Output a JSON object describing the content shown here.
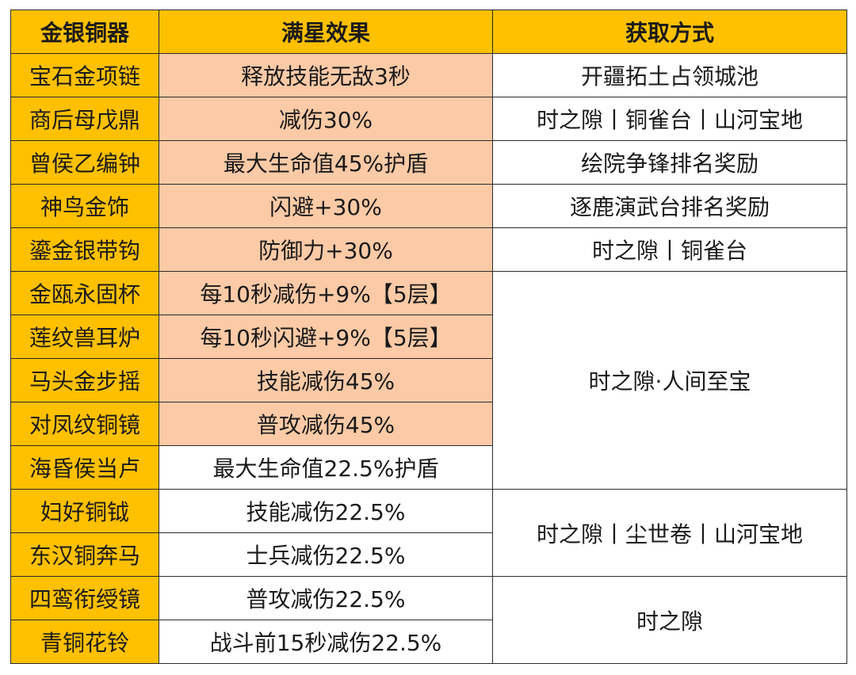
{
  "header": {
    "col_name": "金银铜器",
    "col_effect": "满星效果",
    "col_source": "获取方式"
  },
  "rows": [
    {
      "name": "宝石金项链",
      "effect": "释放技能无敌3秒",
      "source": "开疆拓土占领城池"
    },
    {
      "name": "商后母戊鼎",
      "effect": "减伤30%",
      "source": "时之隙丨铜雀台丨山河宝地"
    },
    {
      "name": "曾侯乙编钟",
      "effect": "最大生命值45%护盾",
      "source": "绘院争锋排名奖励"
    },
    {
      "name": "神鸟金饰",
      "effect": "闪避+30%",
      "source": "逐鹿演武台排名奖励"
    },
    {
      "name": "鎏金银带钩",
      "effect": "防御力+30%",
      "source": "时之隙丨铜雀台"
    },
    {
      "name": "金瓯永固杯",
      "effect": "每10秒减伤+9%【5层】",
      "source": "时之隙·人间至宝"
    },
    {
      "name": "莲纹兽耳炉",
      "effect": "每10秒闪避+9%【5层】"
    },
    {
      "name": "马头金步摇",
      "effect": "技能减伤45%"
    },
    {
      "name": "对凤纹铜镜",
      "effect": "普攻减伤45%"
    },
    {
      "name": "海昏侯当卢",
      "effect": "最大生命值22.5%护盾"
    },
    {
      "name": "妇好铜钺",
      "effect": "技能减伤22.5%",
      "source": "时之隙丨尘世卷丨山河宝地"
    },
    {
      "name": "东汉铜奔马",
      "effect": "士兵减伤22.5%"
    },
    {
      "name": "四鸾衔绶镜",
      "effect": "普攻减伤22.5%",
      "source": "时之隙"
    },
    {
      "name": "青铜花铃",
      "effect": "战斗前15秒减伤22.5%"
    }
  ],
  "colors": {
    "header_bg": "#ffc000",
    "name_bg": "#ffc000",
    "highlight_bg": "#fccaa6",
    "plain_bg": "#ffffff",
    "border": "#2b2b2b"
  }
}
